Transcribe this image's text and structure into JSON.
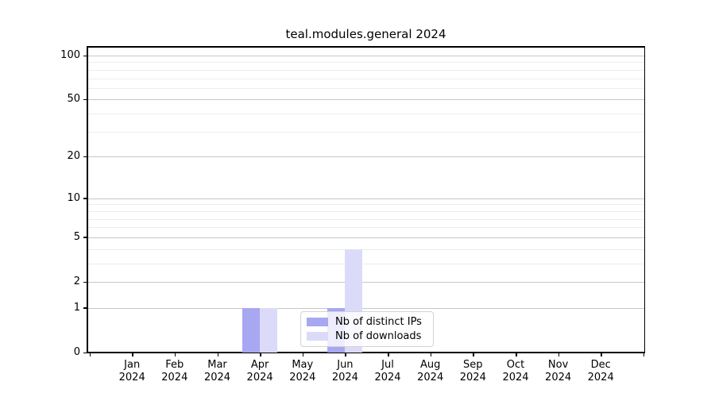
{
  "chart_data": {
    "type": "bar",
    "title": "teal.modules.general 2024",
    "x_tick_year": "2024",
    "categories": [
      "Jan",
      "Feb",
      "Mar",
      "Apr",
      "May",
      "Jun",
      "Jul",
      "Aug",
      "Sep",
      "Oct",
      "Nov",
      "Dec"
    ],
    "series": [
      {
        "name": "Nb of distinct IPs",
        "color": "#a7a7f2",
        "values": [
          0,
          0,
          0,
          1,
          0,
          1,
          0,
          0,
          0,
          0,
          0,
          0
        ]
      },
      {
        "name": "Nb of downloads",
        "color": "#dbdbf9",
        "values": [
          0,
          0,
          0,
          1,
          0,
          4,
          0,
          0,
          0,
          0,
          0,
          0
        ]
      }
    ],
    "y_scale": "log1p",
    "y_major_ticks": [
      0,
      1,
      2,
      5,
      10,
      20,
      50,
      100
    ],
    "y_minor_ticks": [
      3,
      4,
      6,
      7,
      8,
      9,
      30,
      40,
      60,
      70,
      80,
      90
    ],
    "ylim": [
      0,
      115
    ],
    "xlabel": "",
    "ylabel": "",
    "grid": true,
    "legend_position": "lower center"
  },
  "colors": {
    "bar_distinct_ips": "#a7a7f2",
    "bar_downloads": "#dbdbf9",
    "grid_major": "#c7c7c7",
    "grid_minor": "#ececec",
    "spine": "#000000",
    "background": "#ffffff"
  }
}
